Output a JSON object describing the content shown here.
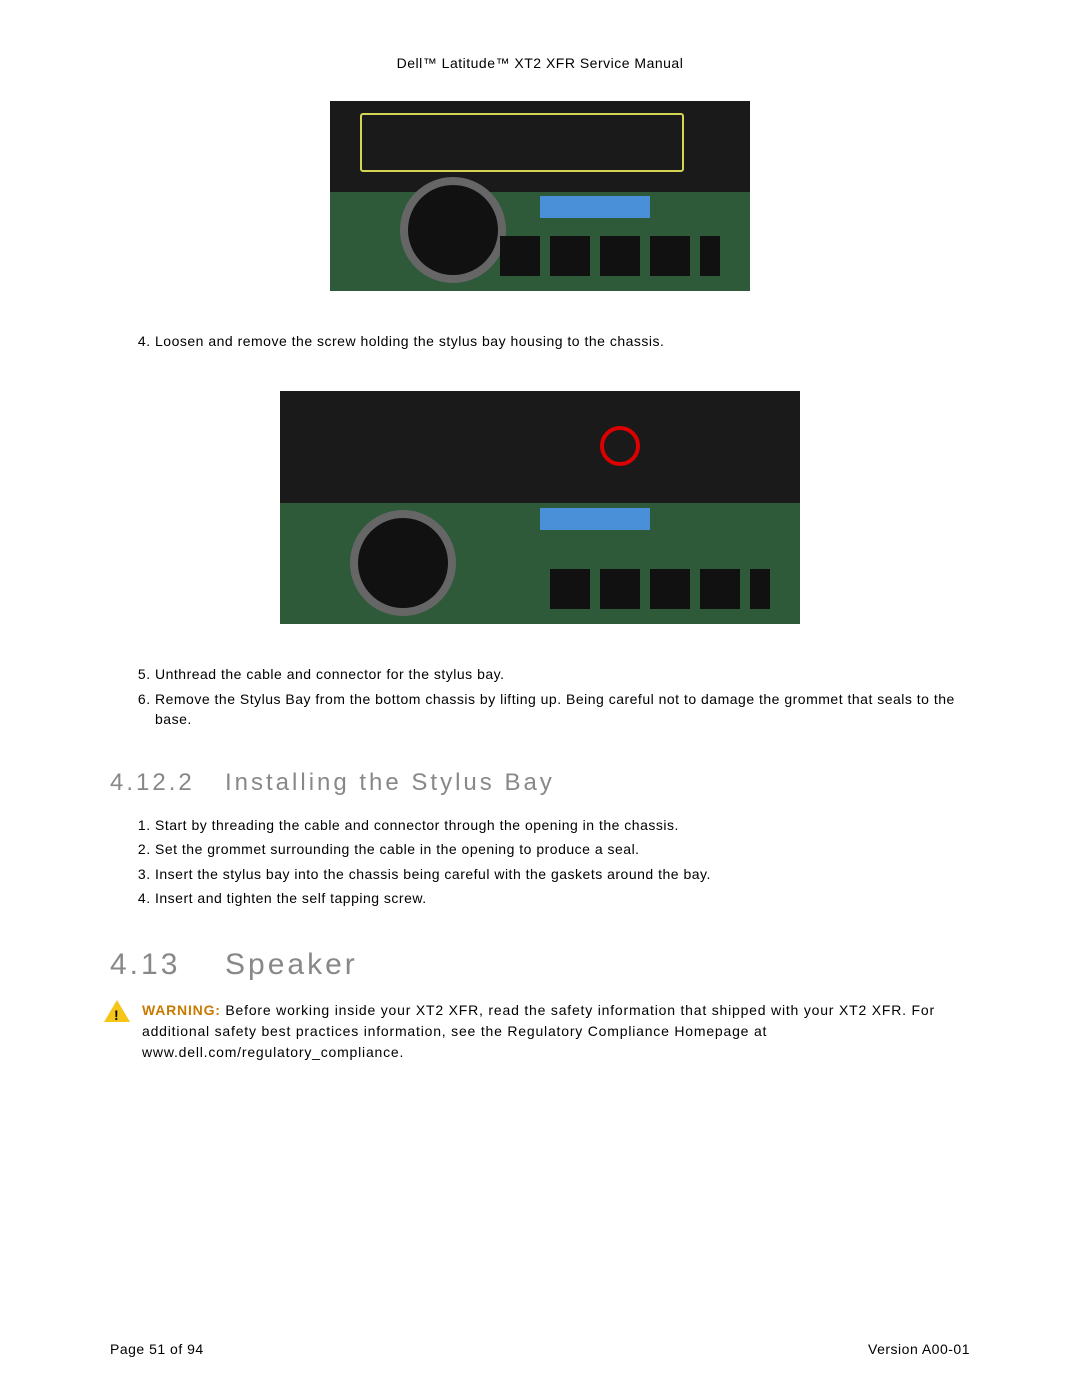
{
  "header": "Dell™ Latitude™ XT2 XFR Service Manual",
  "step4": {
    "num": "4.",
    "text": "Loosen and remove the screw holding the stylus bay housing to the chassis."
  },
  "steps56": {
    "5": {
      "num": "5.",
      "text": "Unthread the cable and connector for the stylus bay."
    },
    "6": {
      "num": "6.",
      "text": "Remove the Stylus Bay from the bottom chassis by lifting up. Being careful not to damage the grommet that seals to the base."
    }
  },
  "section_4_12_2": {
    "num": "4.12.2",
    "title": "Installing the Stylus Bay",
    "steps": {
      "1": "Start by threading the cable and connector through the opening in the chassis.",
      "2": "Set the grommet surrounding the cable in the opening to produce a seal.",
      "3": "Insert the stylus bay into the chassis being careful with the gaskets around the bay.",
      "4": "Insert and tighten the self tapping screw."
    }
  },
  "section_4_13": {
    "num": "4.13",
    "title": "Speaker"
  },
  "warning": {
    "label": "WARNING:",
    "text": " Before working inside your XT2 XFR, read the safety information that shipped with your XT2 XFR. For additional safety best practices information, see the Regulatory Compliance Homepage at www.dell.com/regulatory_compliance."
  },
  "footer": {
    "left": "Page 51 of 94",
    "right": "Version A00-01"
  }
}
